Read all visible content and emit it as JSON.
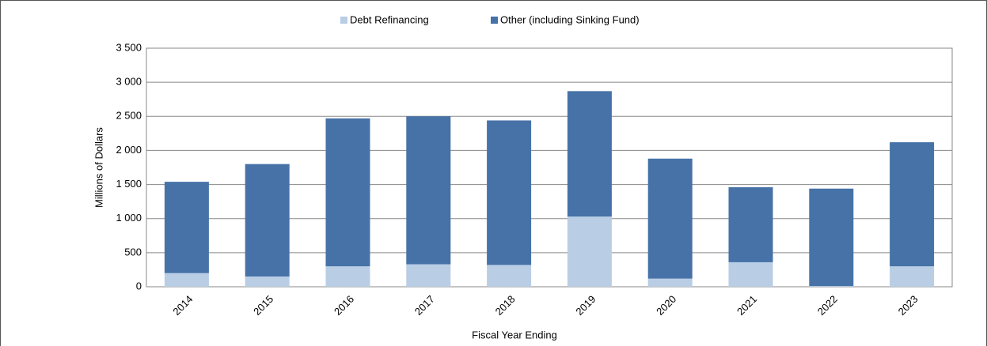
{
  "chart_data": {
    "type": "stacked-bar",
    "x_label": "Fiscal Year Ending",
    "y_label": "Millions of Dollars",
    "categories": [
      "2014",
      "2015",
      "2016",
      "2017",
      "2018",
      "2019",
      "2020",
      "2021",
      "2022",
      "2023"
    ],
    "series": [
      {
        "name": "Debt Refinancing",
        "color": "#b9cde5",
        "values": [
          200,
          150,
          300,
          330,
          320,
          1030,
          120,
          360,
          10,
          300
        ]
      },
      {
        "name": "Other (including Sinking Fund)",
        "color": "#4672a8",
        "values": [
          1340,
          1650,
          2170,
          2170,
          2120,
          1840,
          1760,
          1100,
          1430,
          1820
        ]
      }
    ],
    "ylim": [
      0,
      3500
    ],
    "yticks": [
      0,
      500,
      {
        "value": 1000,
        "label": "1 000"
      },
      {
        "value": 1500,
        "label": "1 500"
      },
      {
        "value": 2000,
        "label": "2 000"
      },
      {
        "value": 2500,
        "label": "2 500"
      },
      {
        "value": 3000,
        "label": "3 000"
      },
      {
        "value": 3500,
        "label": "3 500"
      }
    ],
    "grid": true
  }
}
